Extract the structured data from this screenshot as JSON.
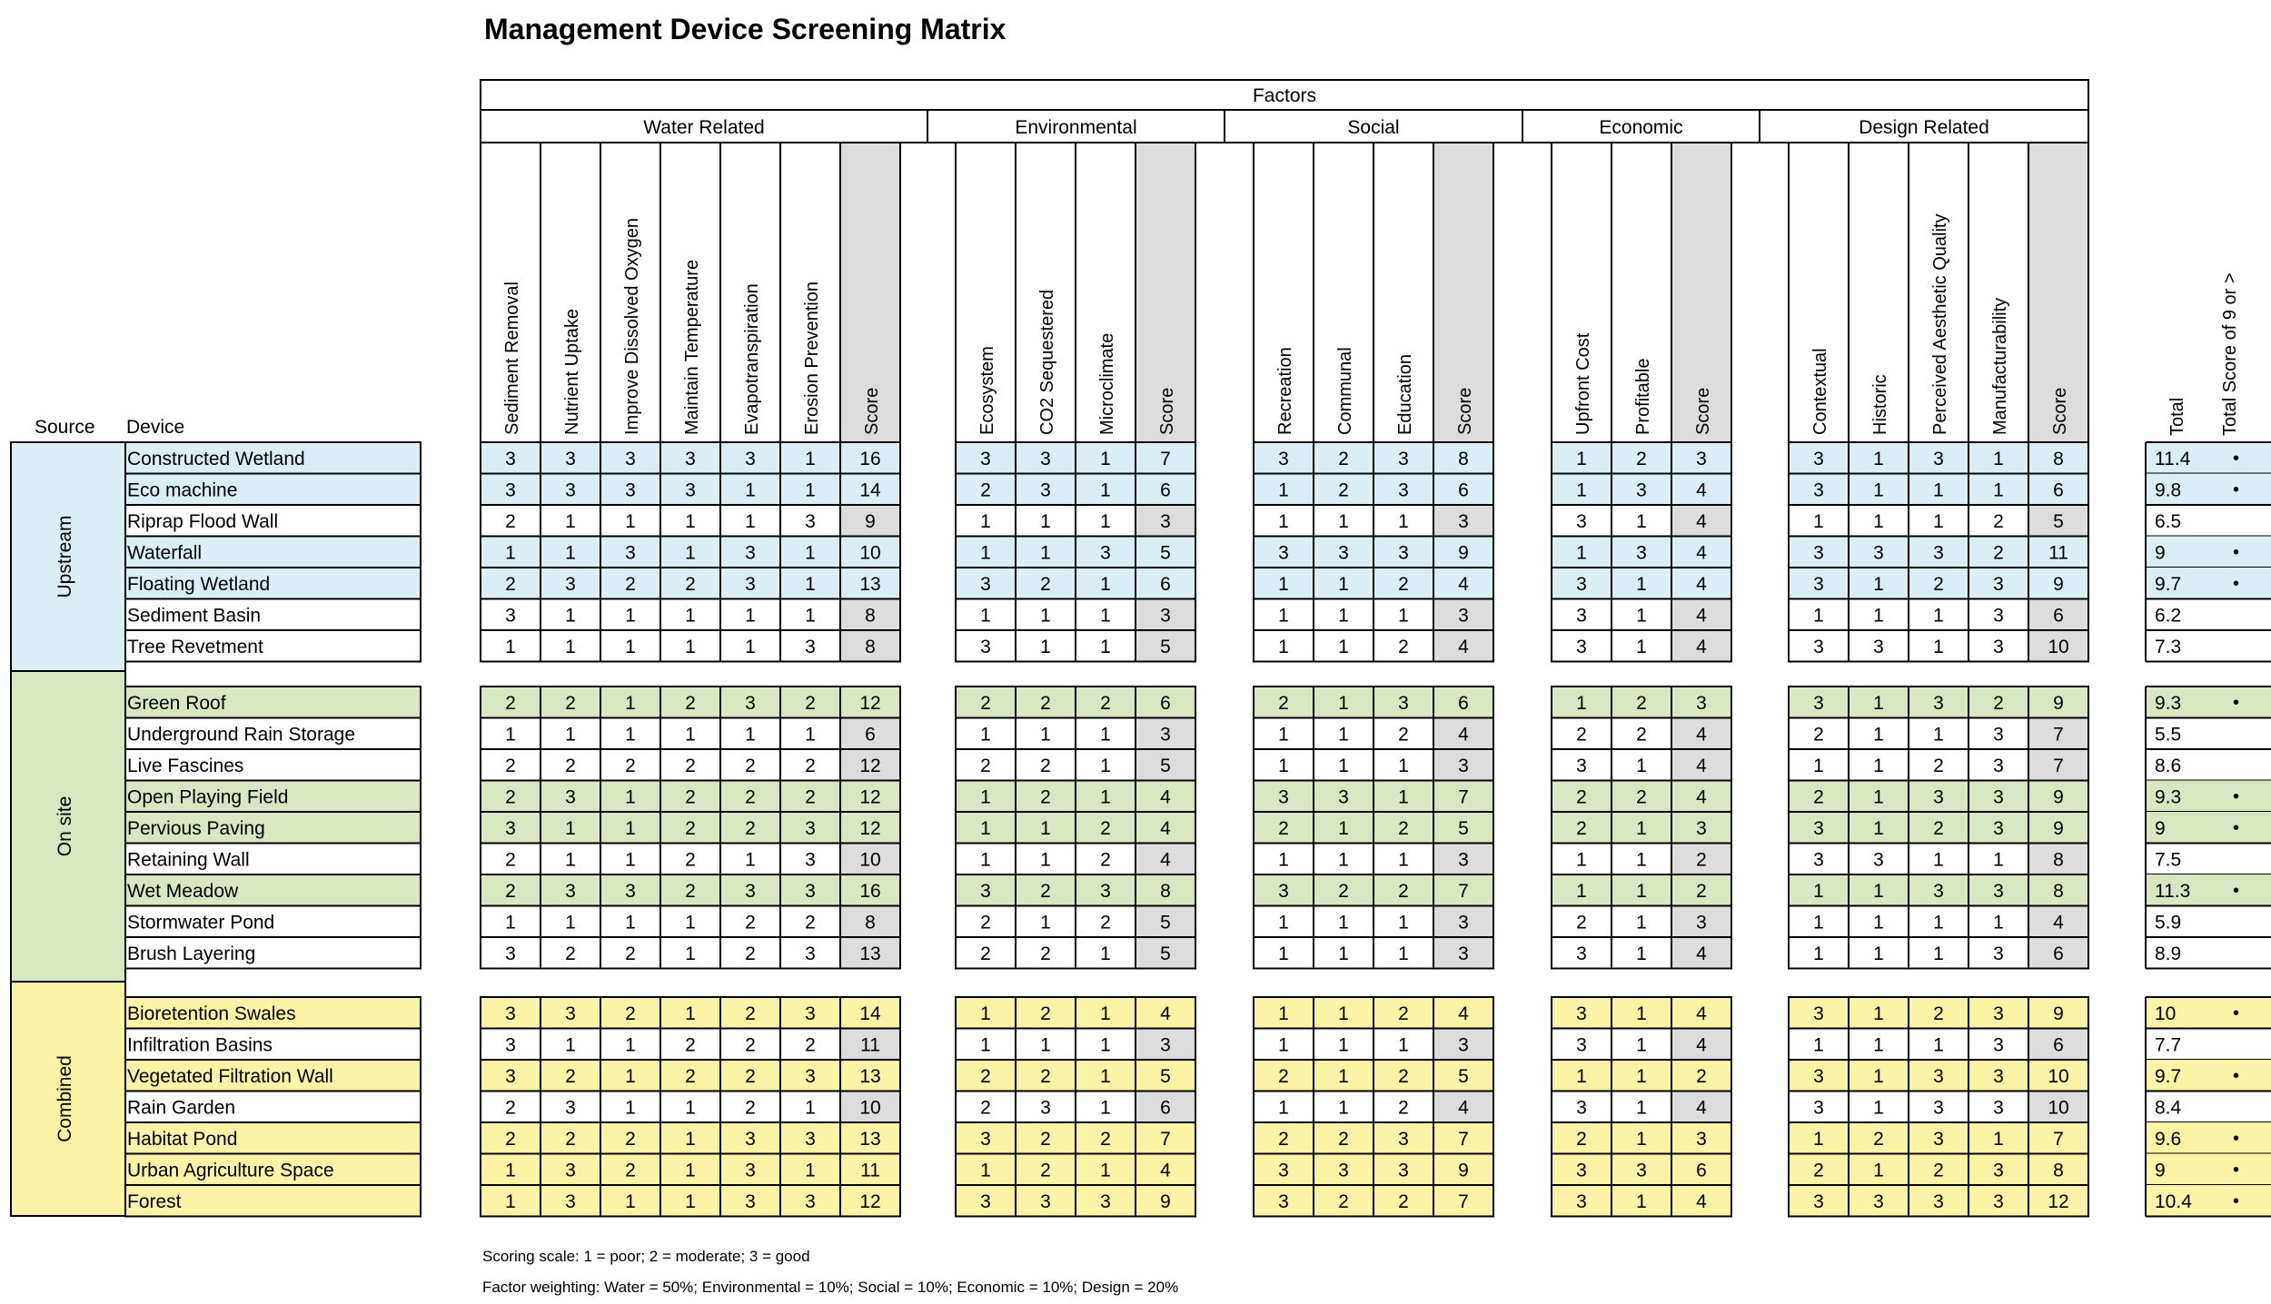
{
  "title": "Management Device Screening Matrix",
  "factors_label": "Factors",
  "source_label": "Source",
  "device_label": "Device",
  "groups": [
    {
      "label": "Water Related",
      "columns": [
        "Sediment Removal",
        "Nutrient Uptake",
        "Improve Dissolved Oxygen",
        "Maintain Temperature",
        "Evapotranspiration",
        "Erosion Prevention",
        "Score"
      ]
    },
    {
      "label": "Environmental",
      "columns": [
        "Ecosystem",
        "CO2 Sequestered",
        "Microclimate",
        "Score"
      ]
    },
    {
      "label": "Social",
      "columns": [
        "Recreation",
        "Communal",
        "Education",
        "Score"
      ]
    },
    {
      "label": "Economic",
      "columns": [
        "Upfront Cost",
        "Profitable",
        "Score"
      ]
    },
    {
      "label": "Design Related",
      "columns": [
        "Contextual",
        "Historic",
        "Perceived Aesthetic Quality",
        "Manufacturability",
        "Score"
      ]
    }
  ],
  "total_columns": [
    "Total",
    "Total Score of 9 or >"
  ],
  "sections": [
    {
      "source": "Upstream",
      "color": "#dbeef5",
      "rows": [
        {
          "device": "Constructed Wetland",
          "hl": true,
          "values": [
            [
              3,
              3,
              3,
              3,
              3,
              1,
              16
            ],
            [
              3,
              3,
              1,
              7
            ],
            [
              3,
              2,
              3,
              8
            ],
            [
              1,
              2,
              3
            ],
            [
              3,
              1,
              3,
              1,
              8
            ]
          ],
          "total": "11.4",
          "mark": "•"
        },
        {
          "device": "Eco machine",
          "hl": true,
          "values": [
            [
              3,
              3,
              3,
              3,
              1,
              1,
              14
            ],
            [
              2,
              3,
              1,
              6
            ],
            [
              1,
              2,
              3,
              6
            ],
            [
              1,
              3,
              4
            ],
            [
              3,
              1,
              1,
              1,
              6
            ]
          ],
          "total": "9.8",
          "mark": "•"
        },
        {
          "device": "Riprap Flood Wall",
          "hl": false,
          "values": [
            [
              2,
              1,
              1,
              1,
              1,
              3,
              9
            ],
            [
              1,
              1,
              1,
              3
            ],
            [
              1,
              1,
              1,
              3
            ],
            [
              3,
              1,
              4
            ],
            [
              1,
              1,
              1,
              2,
              5
            ]
          ],
          "total": "6.5",
          "mark": ""
        },
        {
          "device": "Waterfall",
          "hl": true,
          "values": [
            [
              1,
              1,
              3,
              1,
              3,
              1,
              10
            ],
            [
              1,
              1,
              3,
              5
            ],
            [
              3,
              3,
              3,
              9
            ],
            [
              1,
              3,
              4
            ],
            [
              3,
              3,
              3,
              2,
              11
            ]
          ],
          "total": "9",
          "mark": "•"
        },
        {
          "device": "Floating Wetland",
          "hl": true,
          "values": [
            [
              2,
              3,
              2,
              2,
              3,
              1,
              13
            ],
            [
              3,
              2,
              1,
              6
            ],
            [
              1,
              1,
              2,
              4
            ],
            [
              3,
              1,
              4
            ],
            [
              3,
              1,
              2,
              3,
              9
            ]
          ],
          "total": "9.7",
          "mark": "•"
        },
        {
          "device": "Sediment Basin",
          "hl": false,
          "values": [
            [
              3,
              1,
              1,
              1,
              1,
              1,
              8
            ],
            [
              1,
              1,
              1,
              3
            ],
            [
              1,
              1,
              1,
              3
            ],
            [
              3,
              1,
              4
            ],
            [
              1,
              1,
              1,
              3,
              6
            ]
          ],
          "total": "6.2",
          "mark": ""
        },
        {
          "device": "Tree Revetment",
          "hl": false,
          "values": [
            [
              1,
              1,
              1,
              1,
              1,
              3,
              8
            ],
            [
              3,
              1,
              1,
              5
            ],
            [
              1,
              1,
              2,
              4
            ],
            [
              3,
              1,
              4
            ],
            [
              3,
              3,
              1,
              3,
              10
            ]
          ],
          "total": "7.3",
          "mark": ""
        }
      ]
    },
    {
      "source": "On site",
      "color": "#d9e6c2",
      "rows": [
        {
          "device": "Green Roof",
          "hl": true,
          "values": [
            [
              2,
              2,
              1,
              2,
              3,
              2,
              12
            ],
            [
              2,
              2,
              2,
              6
            ],
            [
              2,
              1,
              3,
              6
            ],
            [
              1,
              2,
              3
            ],
            [
              3,
              1,
              3,
              2,
              9
            ]
          ],
          "total": "9.3",
          "mark": "•"
        },
        {
          "device": "Underground Rain Storage",
          "hl": false,
          "values": [
            [
              1,
              1,
              1,
              1,
              1,
              1,
              6
            ],
            [
              1,
              1,
              1,
              3
            ],
            [
              1,
              1,
              2,
              4
            ],
            [
              2,
              2,
              4
            ],
            [
              2,
              1,
              1,
              3,
              7
            ]
          ],
          "total": "5.5",
          "mark": ""
        },
        {
          "device": "Live Fascines",
          "hl": false,
          "values": [
            [
              2,
              2,
              2,
              2,
              2,
              2,
              12
            ],
            [
              2,
              2,
              1,
              5
            ],
            [
              1,
              1,
              1,
              3
            ],
            [
              3,
              1,
              4
            ],
            [
              1,
              1,
              2,
              3,
              7
            ]
          ],
          "total": "8.6",
          "mark": ""
        },
        {
          "device": "Open Playing Field",
          "hl": true,
          "values": [
            [
              2,
              3,
              1,
              2,
              2,
              2,
              12
            ],
            [
              1,
              2,
              1,
              4
            ],
            [
              3,
              3,
              1,
              7
            ],
            [
              2,
              2,
              4
            ],
            [
              2,
              1,
              3,
              3,
              9
            ]
          ],
          "total": "9.3",
          "mark": "•"
        },
        {
          "device": "Pervious Paving",
          "hl": true,
          "values": [
            [
              3,
              1,
              1,
              2,
              2,
              3,
              12
            ],
            [
              1,
              1,
              2,
              4
            ],
            [
              2,
              1,
              2,
              5
            ],
            [
              2,
              1,
              3
            ],
            [
              3,
              1,
              2,
              3,
              9
            ]
          ],
          "total": "9",
          "mark": "•"
        },
        {
          "device": "Retaining Wall",
          "hl": false,
          "values": [
            [
              2,
              1,
              1,
              2,
              1,
              3,
              10
            ],
            [
              1,
              1,
              2,
              4
            ],
            [
              1,
              1,
              1,
              3
            ],
            [
              1,
              1,
              2
            ],
            [
              3,
              3,
              1,
              1,
              8
            ]
          ],
          "total": "7.5",
          "mark": ""
        },
        {
          "device": "Wet Meadow",
          "hl": true,
          "values": [
            [
              2,
              3,
              3,
              2,
              3,
              3,
              16
            ],
            [
              3,
              2,
              3,
              8
            ],
            [
              3,
              2,
              2,
              7
            ],
            [
              1,
              1,
              2
            ],
            [
              1,
              1,
              3,
              3,
              8
            ]
          ],
          "total": "11.3",
          "mark": "•"
        },
        {
          "device": "Stormwater Pond",
          "hl": false,
          "values": [
            [
              1,
              1,
              1,
              1,
              2,
              2,
              8
            ],
            [
              2,
              1,
              2,
              5
            ],
            [
              1,
              1,
              1,
              3
            ],
            [
              2,
              1,
              3
            ],
            [
              1,
              1,
              1,
              1,
              4
            ]
          ],
          "total": "5.9",
          "mark": ""
        },
        {
          "device": "Brush Layering",
          "hl": false,
          "values": [
            [
              3,
              2,
              2,
              1,
              2,
              3,
              13
            ],
            [
              2,
              2,
              1,
              5
            ],
            [
              1,
              1,
              1,
              3
            ],
            [
              3,
              1,
              4
            ],
            [
              1,
              1,
              1,
              3,
              6
            ]
          ],
          "total": "8.9",
          "mark": ""
        }
      ]
    },
    {
      "source": "Combined",
      "color": "#fbf3a5",
      "rows": [
        {
          "device": "Bioretention Swales",
          "hl": true,
          "values": [
            [
              3,
              3,
              2,
              1,
              2,
              3,
              14
            ],
            [
              1,
              2,
              1,
              4
            ],
            [
              1,
              1,
              2,
              4
            ],
            [
              3,
              1,
              4
            ],
            [
              3,
              1,
              2,
              3,
              9
            ]
          ],
          "total": "10",
          "mark": "•"
        },
        {
          "device": "Infiltration Basins",
          "hl": false,
          "values": [
            [
              3,
              1,
              1,
              2,
              2,
              2,
              11
            ],
            [
              1,
              1,
              1,
              3
            ],
            [
              1,
              1,
              1,
              3
            ],
            [
              3,
              1,
              4
            ],
            [
              1,
              1,
              1,
              3,
              6
            ]
          ],
          "total": "7.7",
          "mark": ""
        },
        {
          "device": "Vegetated Filtration Wall",
          "hl": true,
          "values": [
            [
              3,
              2,
              1,
              2,
              2,
              3,
              13
            ],
            [
              2,
              2,
              1,
              5
            ],
            [
              2,
              1,
              2,
              5
            ],
            [
              1,
              1,
              2
            ],
            [
              3,
              1,
              3,
              3,
              10
            ]
          ],
          "total": "9.7",
          "mark": "•"
        },
        {
          "device": "Rain Garden",
          "hl": false,
          "values": [
            [
              2,
              3,
              1,
              1,
              2,
              1,
              10
            ],
            [
              2,
              3,
              1,
              6
            ],
            [
              1,
              1,
              2,
              4
            ],
            [
              3,
              1,
              4
            ],
            [
              3,
              1,
              3,
              3,
              10
            ]
          ],
          "total": "8.4",
          "mark": ""
        },
        {
          "device": "Habitat Pond",
          "hl": true,
          "values": [
            [
              2,
              2,
              2,
              1,
              3,
              3,
              13
            ],
            [
              3,
              2,
              2,
              7
            ],
            [
              2,
              2,
              3,
              7
            ],
            [
              2,
              1,
              3
            ],
            [
              1,
              2,
              3,
              1,
              7
            ]
          ],
          "total": "9.6",
          "mark": "•"
        },
        {
          "device": "Urban Agriculture Space",
          "hl": true,
          "values": [
            [
              1,
              3,
              2,
              1,
              3,
              1,
              11
            ],
            [
              1,
              2,
              1,
              4
            ],
            [
              3,
              3,
              3,
              9
            ],
            [
              3,
              3,
              6
            ],
            [
              2,
              1,
              2,
              3,
              8
            ]
          ],
          "total": "9",
          "mark": "•"
        },
        {
          "device": "Forest",
          "hl": true,
          "values": [
            [
              1,
              3,
              1,
              1,
              3,
              3,
              12
            ],
            [
              3,
              3,
              3,
              9
            ],
            [
              3,
              2,
              2,
              7
            ],
            [
              3,
              1,
              4
            ],
            [
              3,
              3,
              3,
              3,
              12
            ]
          ],
          "total": "10.4",
          "mark": "•"
        }
      ]
    }
  ],
  "notes": [
    "Scoring scale: 1 = poor; 2 = moderate; 3 = good",
    "Factor weighting: Water = 50%; Environmental = 10%; Social = 10%; Economic = 10%; Design = 20%"
  ],
  "colors": {
    "score_fill": "#dcdcdc",
    "border": "#000000"
  }
}
